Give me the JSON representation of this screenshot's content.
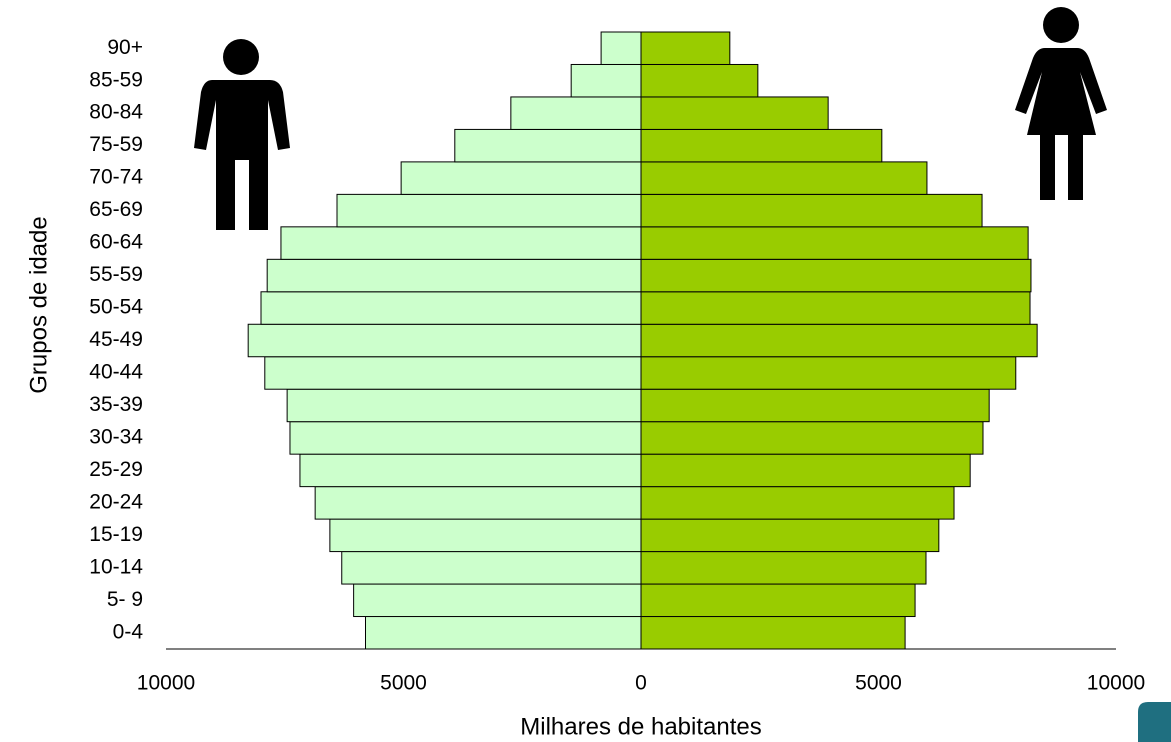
{
  "chart_data": {
    "type": "population-pyramid",
    "x_label": "Milhares de habitantes",
    "y_label": "Grupos de idade",
    "categories": [
      "0-4",
      "5- 9",
      "10-14",
      "15-19",
      "20-24",
      "25-29",
      "30-34",
      "35-39",
      "40-44",
      "45-49",
      "50-54",
      "55-59",
      "60-64",
      "65-69",
      "70-74",
      "75-59",
      "80-84",
      "85-59",
      "90+"
    ],
    "series": [
      {
        "color": "#ccffcc",
        "values": [
          -5800,
          -6050,
          -6300,
          -6550,
          -6860,
          -7180,
          -7390,
          -7450,
          -7920,
          -8270,
          -8000,
          -7870,
          -7580,
          -6400,
          -5050,
          -3920,
          -2740,
          -1470,
          -840
        ]
      },
      {
        "color": "#99cc00",
        "values": [
          5560,
          5770,
          6000,
          6270,
          6590,
          6930,
          7200,
          7330,
          7890,
          8340,
          8190,
          8210,
          8150,
          7180,
          6020,
          5070,
          3940,
          2460,
          1870
        ]
      }
    ],
    "xlim": [
      -10000,
      10000
    ],
    "xticks": [
      {
        "value": -10000,
        "label": "10000"
      },
      {
        "value": -5000,
        "label": "5000"
      },
      0,
      5000,
      10000
    ]
  }
}
